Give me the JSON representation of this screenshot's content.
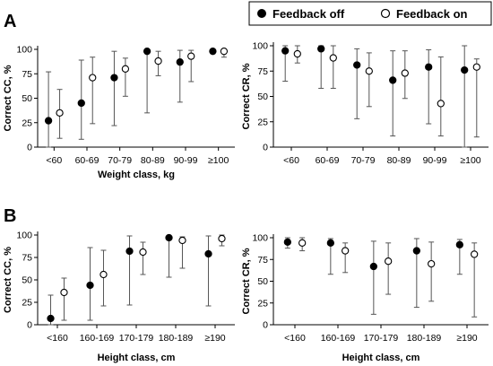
{
  "figure": {
    "panel_labels": [
      "A",
      "B"
    ],
    "legend": [
      {
        "label": "Feedback off",
        "marker": "filled-circle"
      },
      {
        "label": "Feedback on",
        "marker": "open-circle"
      }
    ],
    "colors": {
      "filled": "#000000",
      "open": "#ffffff",
      "stroke": "#000000",
      "whisker": "#555555"
    }
  },
  "chart_data": [
    {
      "type": "scatter",
      "subtype": "dot-with-range",
      "panel": "A",
      "ylabel": "Correct CC, %",
      "xlabel": "Weight class, kg",
      "categories": [
        "<60",
        "60-69",
        "70-79",
        "80-89",
        "90-99",
        "≥100"
      ],
      "ylim": [
        0,
        100
      ],
      "yticks": [
        0,
        25,
        50,
        75,
        100
      ],
      "series": [
        {
          "name": "Feedback off",
          "marker": "filled",
          "values": [
            27,
            45,
            71,
            98,
            87,
            98
          ],
          "low": [
            0,
            8,
            22,
            35,
            46,
            97
          ],
          "high": [
            77,
            89,
            98,
            98,
            99,
            100
          ]
        },
        {
          "name": "Feedback on",
          "marker": "open",
          "values": [
            35,
            71,
            80,
            88,
            93,
            98
          ],
          "low": [
            9,
            24,
            52,
            73,
            67,
            92
          ],
          "high": [
            59,
            92,
            91,
            98,
            99,
            100
          ]
        }
      ]
    },
    {
      "type": "scatter",
      "subtype": "dot-with-range",
      "panel": "A",
      "ylabel": "Correct CR, %",
      "xlabel": "",
      "categories": [
        "<60",
        "60-69",
        "70-79",
        "80-89",
        "90-99",
        "≥100"
      ],
      "ylim": [
        0,
        100
      ],
      "yticks": [
        0,
        25,
        50,
        75,
        100
      ],
      "series": [
        {
          "name": "Feedback off",
          "marker": "filled",
          "values": [
            95,
            97,
            81,
            66,
            79,
            76
          ],
          "low": [
            65,
            58,
            28,
            11,
            23,
            0
          ],
          "high": [
            100,
            100,
            97,
            95,
            96,
            100
          ]
        },
        {
          "name": "Feedback on",
          "marker": "open",
          "values": [
            92,
            88,
            75,
            73,
            43,
            79
          ],
          "low": [
            83,
            58,
            40,
            48,
            11,
            10
          ],
          "high": [
            100,
            100,
            93,
            95,
            89,
            87
          ]
        }
      ]
    },
    {
      "type": "scatter",
      "subtype": "dot-with-range",
      "panel": "B",
      "ylabel": "Correct CC, %",
      "xlabel": "Height class, cm",
      "categories": [
        "<160",
        "160-169",
        "170-179",
        "180-189",
        "≥190"
      ],
      "ylim": [
        0,
        100
      ],
      "yticks": [
        0,
        25,
        50,
        75,
        100
      ],
      "series": [
        {
          "name": "Feedback off",
          "marker": "filled",
          "values": [
            7,
            44,
            82,
            97,
            79
          ],
          "low": [
            0,
            5,
            22,
            53,
            21
          ],
          "high": [
            33,
            86,
            99,
            99,
            99
          ]
        },
        {
          "name": "Feedback on",
          "marker": "open",
          "values": [
            36,
            56,
            81,
            94,
            96
          ],
          "low": [
            5,
            21,
            56,
            63,
            88
          ],
          "high": [
            52,
            83,
            92,
            98,
            100
          ]
        }
      ]
    },
    {
      "type": "scatter",
      "subtype": "dot-with-range",
      "panel": "B",
      "ylabel": "Correct CR, %",
      "xlabel": "Height class, cm",
      "categories": [
        "<160",
        "160-169",
        "170-179",
        "180-189",
        "≥190"
      ],
      "ylim": [
        0,
        100
      ],
      "yticks": [
        0,
        25,
        50,
        75,
        100
      ],
      "series": [
        {
          "name": "Feedback off",
          "marker": "filled",
          "values": [
            95,
            94,
            67,
            85,
            92
          ],
          "low": [
            88,
            58,
            12,
            20,
            58
          ],
          "high": [
            100,
            99,
            96,
            99,
            98
          ]
        },
        {
          "name": "Feedback on",
          "marker": "open",
          "values": [
            94,
            85,
            73,
            70,
            81
          ],
          "low": [
            85,
            60,
            35,
            27,
            9
          ],
          "high": [
            100,
            94,
            94,
            95,
            94
          ]
        }
      ]
    }
  ]
}
